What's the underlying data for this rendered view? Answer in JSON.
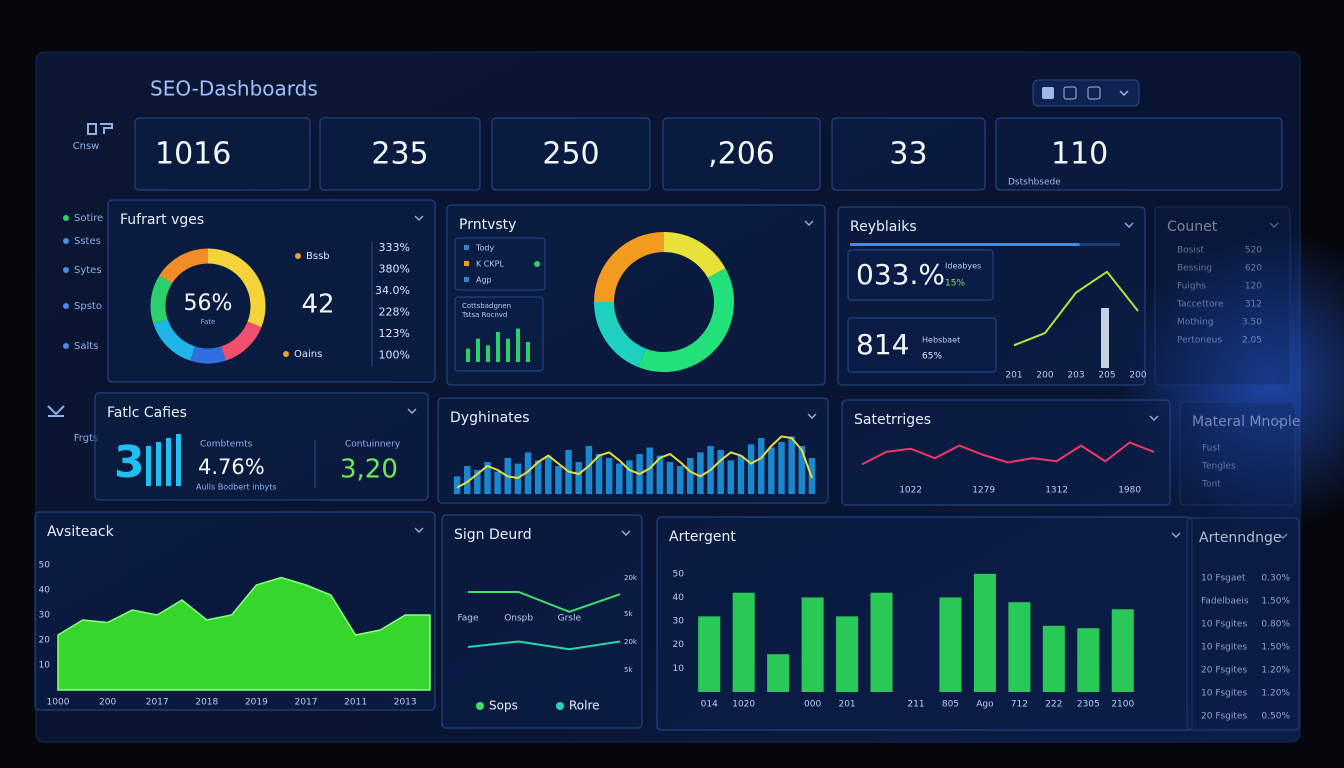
{
  "header": {
    "title": "SEO-Dashboards"
  },
  "sidebar": [
    "Cnsw",
    "Sotire",
    "Sstes",
    "Sytes",
    "Spsto",
    "Salts",
    "Frgts"
  ],
  "kpis": [
    "1016",
    "235",
    "250",
    ",206",
    "33",
    "110"
  ],
  "kpi_note": "Dstshbsede",
  "stat_panel": {
    "title": "Fatlc Cafies",
    "icon_text": "3",
    "metrics": [
      {
        "label": "Combtemts",
        "value": "4.76%"
      },
      {
        "label": "Contuinnery",
        "value": "3,20"
      }
    ],
    "note": "Aulls Bodbert inbyts"
  },
  "side_panels": [
    {
      "title": "Counet",
      "rows": [
        [
          "Bosist",
          "520"
        ],
        [
          "Bessing",
          "620"
        ],
        [
          "Fuighs",
          "120"
        ],
        [
          "Taccettore",
          "312"
        ],
        [
          "Mothing",
          "3.50"
        ],
        [
          "Pertoneus",
          "2.05"
        ]
      ]
    },
    {
      "title": "Materal Mnople",
      "rows": [
        [
          "Fust"
        ],
        [
          "Tengles"
        ],
        [
          "Tont"
        ]
      ]
    },
    {
      "title": "Artenndnge",
      "rows": [
        [
          "10 Fsgaet",
          "0.30%"
        ],
        [
          "Fadelbaeis",
          "1.50%"
        ],
        [
          "10 Fsgites",
          "0.80%"
        ],
        [
          "10 Fsgites",
          "1.50%"
        ],
        [
          "20 Fsgites",
          "1.20%"
        ],
        [
          "10 Fsgites",
          "1.20%"
        ],
        [
          "20 Fsgites",
          "0.50%"
        ]
      ]
    }
  ],
  "chart_data": [
    {
      "type": "pie",
      "title": "Fufrart vges",
      "center_label": "56%",
      "sub_label": "Fate",
      "values": [
        31,
        14,
        10,
        15,
        14,
        16
      ],
      "colors": [
        "#f4d43a",
        "#f0506e",
        "#2f6fe0",
        "#1fb5e8",
        "#2bd06a",
        "#f28c28"
      ],
      "legend": [
        {
          "name": "Bssb",
          "color": "#f0a030"
        },
        {
          "name": "Oains",
          "color": "#f0a030"
        }
      ],
      "big_number": "42",
      "percent_list": [
        "333%",
        "380%",
        "34.0%",
        "228%",
        "123%",
        "100%"
      ]
    },
    {
      "type": "pie",
      "title": "Prntvsty",
      "values": [
        17,
        39,
        19,
        25
      ],
      "colors": [
        "#e6e23a",
        "#22e07a",
        "#1fd0c0",
        "#f29b1f"
      ],
      "legend": [
        {
          "name": "Tody",
          "color": "#3a7bd5"
        },
        {
          "name": "K CKPL",
          "color": "#f29b1f"
        },
        {
          "name": "Agp",
          "color": "#3a7bd5"
        }
      ],
      "mini_title": "Cottsbadgnen",
      "mini_sub": "Tstsa Rocnvd",
      "mini_color": "#2bd06a",
      "mini_values": [
        4,
        7,
        5,
        9,
        7,
        10,
        6
      ]
    },
    {
      "type": "line",
      "title": "Reyblaiks",
      "progress": 85,
      "color": "#b8e03a",
      "stats": [
        {
          "value": "033.%",
          "label": "Ideabyes",
          "change": "15%"
        },
        {
          "value": "814",
          "label": "Hebsbaet",
          "change": "65%"
        }
      ],
      "categories": [
        "201",
        "200",
        "203",
        "205",
        "200"
      ],
      "values": [
        12,
        22,
        55,
        72,
        40
      ],
      "ylim": [
        0,
        80
      ]
    },
    {
      "type": "bar",
      "title": "Dyghinates",
      "color": "#1e9be8",
      "line_color": "#e8dc3a",
      "values": [
        22,
        35,
        30,
        40,
        28,
        45,
        38,
        52,
        42,
        48,
        35,
        55,
        40,
        60,
        50,
        45,
        38,
        42,
        50,
        58,
        48,
        40,
        35,
        45,
        52,
        60,
        55,
        42,
        48,
        62,
        70,
        58,
        65,
        72,
        60,
        45
      ],
      "line": [
        8,
        15,
        25,
        35,
        30,
        22,
        20,
        28,
        40,
        48,
        38,
        28,
        25,
        35,
        48,
        52,
        42,
        30,
        25,
        32,
        45,
        50,
        40,
        28,
        22,
        30,
        42,
        52,
        48,
        38,
        45,
        60,
        72,
        70,
        55,
        20
      ],
      "ylim": [
        0,
        80
      ]
    },
    {
      "type": "line",
      "title": "Satetrriges",
      "color": "#f0366a",
      "categories": [
        null,
        null,
        "1022",
        null,
        null,
        "1279",
        null,
        null,
        "1312",
        null,
        null,
        "1980",
        null
      ],
      "values": [
        25,
        45,
        50,
        35,
        55,
        40,
        28,
        35,
        30,
        55,
        30,
        60,
        45
      ],
      "ylim": [
        0,
        80
      ]
    },
    {
      "type": "area",
      "title": "Avsiteack",
      "color": "#3cf02a",
      "categories": [
        "1000",
        null,
        "200",
        null,
        "2017",
        null,
        "2018",
        null,
        "2019",
        null,
        "2017",
        null,
        "2011",
        null,
        "2013",
        null
      ],
      "values": [
        22,
        28,
        27,
        32,
        30,
        36,
        28,
        30,
        42,
        45,
        42,
        38,
        22,
        24,
        30,
        30
      ],
      "ylim": [
        0,
        50
      ],
      "yticks": [
        10,
        20,
        30,
        40,
        50
      ]
    },
    {
      "type": "line",
      "title": "Sign Deurd",
      "categories": [
        "Fage",
        "Onspb",
        "Grsle",
        null
      ],
      "series": [
        {
          "name": "Sops",
          "color": "#3ee06a",
          "values": [
            80,
            80,
            62,
            78
          ]
        },
        {
          "name": "Rolre",
          "color": "#27d6b0",
          "values": [
            30,
            35,
            28,
            35
          ]
        }
      ],
      "right_labels": [
        "20k",
        "5k",
        "20k",
        "5k"
      ],
      "ylim": [
        0,
        100
      ]
    },
    {
      "type": "bar",
      "title": "Artergent",
      "color": "#2ee85a",
      "categories": [
        "014",
        "1020",
        null,
        "000",
        "201",
        null,
        "211",
        "805",
        "Ago",
        "712",
        "222",
        "2305",
        "2100"
      ],
      "values": [
        32,
        42,
        16,
        40,
        32,
        42,
        null,
        40,
        50,
        38,
        28,
        27,
        35
      ],
      "ylim": [
        0,
        55
      ],
      "yticks": [
        10,
        20,
        30,
        40,
        50
      ]
    }
  ]
}
